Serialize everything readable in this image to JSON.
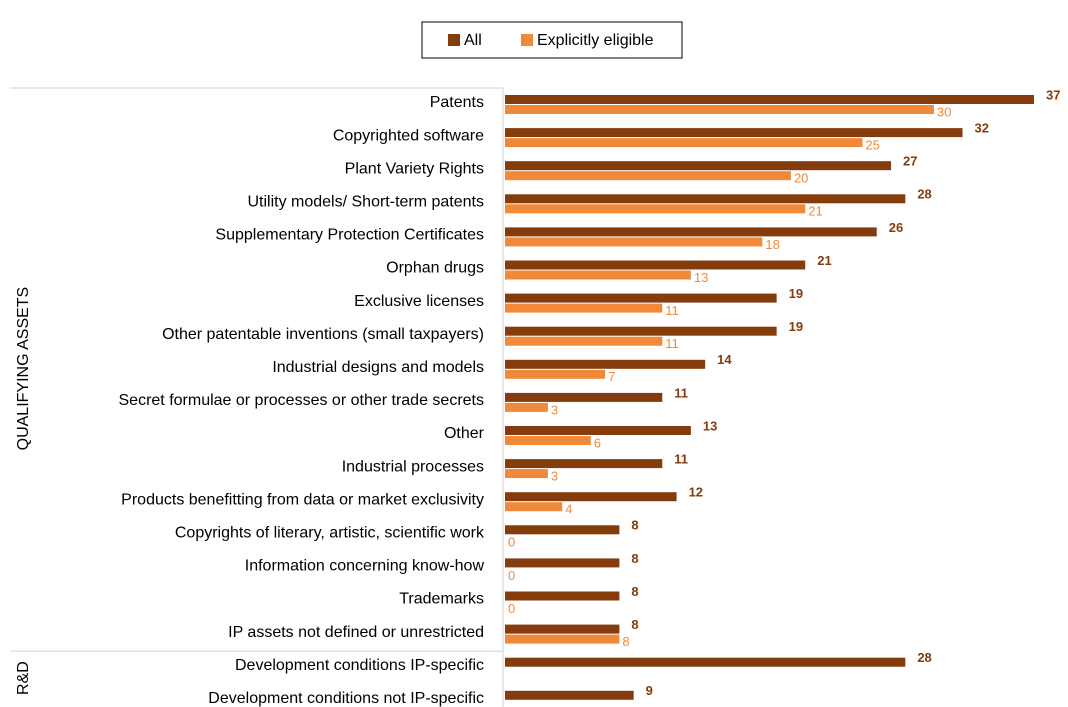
{
  "chart_data": {
    "type": "bar",
    "orientation": "horizontal",
    "categories": [
      "Patents",
      "Copyrighted software",
      "Plant Variety Rights",
      "Utility models/ Short-term patents",
      "Supplementary Protection Certificates",
      "Orphan drugs",
      "Exclusive licenses",
      "Other patentable inventions (small taxpayers)",
      "Industrial designs and models",
      "Secret formulae or processes or other trade secrets",
      "Other",
      "Industrial processes",
      "Products benefitting from data or market exclusivity",
      "Copyrights of literary, artistic, scientific work",
      "Information concerning know-how",
      "Trademarks",
      "IP assets not defined or unrestricted",
      "Development conditions IP-specific",
      "Development conditions not IP-specific"
    ],
    "groups": [
      "QUALIFYING ASSETS",
      "R&D"
    ],
    "series": [
      {
        "name": "All",
        "color": "#843c0c",
        "values": [
          37,
          32,
          27,
          28,
          26,
          21,
          19,
          19,
          14,
          11,
          13,
          11,
          12,
          8,
          8,
          8,
          8,
          28,
          9
        ]
      },
      {
        "name": "Explicitly eligible",
        "color": "#f08a3a",
        "values": [
          30,
          25,
          20,
          21,
          18,
          13,
          11,
          11,
          7,
          3,
          6,
          3,
          4,
          0,
          0,
          0,
          8,
          null,
          null
        ]
      }
    ],
    "xlim": [
      0,
      37
    ],
    "legend": "top"
  }
}
